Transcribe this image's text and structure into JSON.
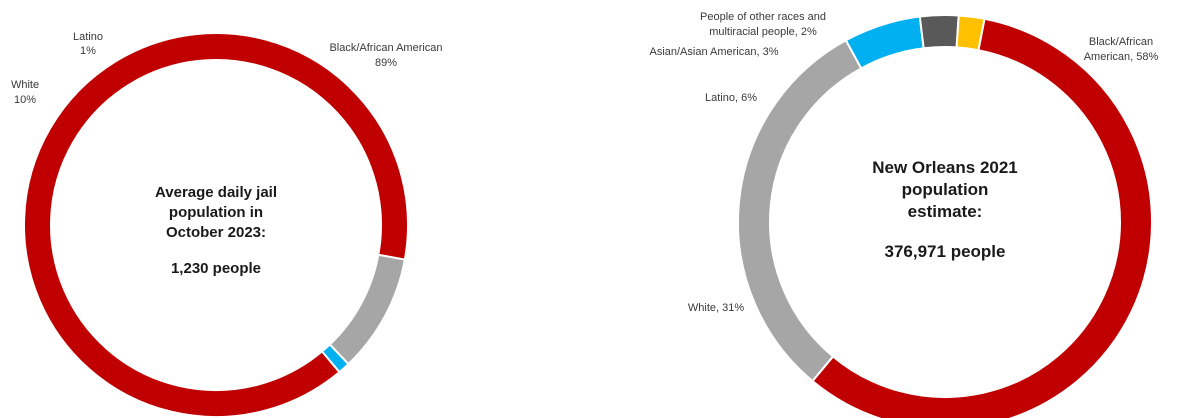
{
  "chart_data": [
    {
      "type": "pie",
      "center_text": [
        "Average daily jail",
        "population in",
        "October 2023:",
        "",
        "1,230 people"
      ],
      "slices": [
        {
          "label_lines": [
            "Black/African American",
            "89%"
          ],
          "value": 89,
          "color": "#c00000"
        },
        {
          "label_lines": [
            "White",
            "10%"
          ],
          "value": 10,
          "color": "#a6a6a6"
        },
        {
          "label_lines": [
            "Latino",
            "1%"
          ],
          "value": 1,
          "color": "#00b0f0"
        }
      ]
    },
    {
      "type": "pie",
      "center_text": [
        "New Orleans 2021",
        "population",
        "estimate:",
        "",
        "376,971 people"
      ],
      "slices": [
        {
          "label_lines": [
            "Black/African",
            "American, 58%"
          ],
          "value": 58,
          "color": "#c00000"
        },
        {
          "label_lines": [
            "White, 31%"
          ],
          "value": 31,
          "color": "#a6a6a6"
        },
        {
          "label_lines": [
            "Latino, 6%"
          ],
          "value": 6,
          "color": "#00b0f0"
        },
        {
          "label_lines": [
            "Asian/Asian American, 3%"
          ],
          "value": 3,
          "color": "#595959"
        },
        {
          "label_lines": [
            "People of other races and",
            "multiracial people, 2%"
          ],
          "value": 2,
          "color": "#ffc000"
        }
      ]
    }
  ]
}
